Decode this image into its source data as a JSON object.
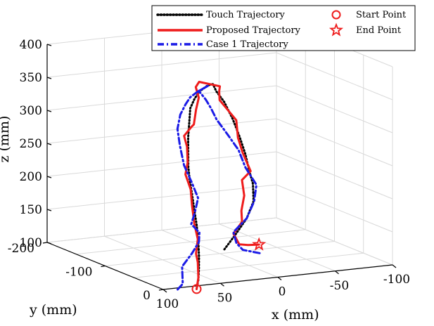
{
  "chart_data": {
    "type": "line3d",
    "title": "",
    "xlabel": "x (mm)",
    "ylabel": "y (mm)",
    "zlabel": "z (mm)",
    "xlim": [
      -100,
      100
    ],
    "ylim": [
      -200,
      0
    ],
    "zlim": [
      100,
      400
    ],
    "x_ticks": [
      "100",
      "50",
      "0",
      "-50",
      "-100"
    ],
    "y_ticks": [
      "-200",
      "-100",
      "0"
    ],
    "z_ticks": [
      "100",
      "150",
      "200",
      "250",
      "300",
      "350",
      "400"
    ],
    "grid": true,
    "legend_position": "top-right",
    "legend": [
      "Touch Trajectory",
      "Proposed Trajectory",
      "Case 1 Trajectory",
      "Start Point",
      "End Point"
    ],
    "series": [
      {
        "name": "Touch Trajectory",
        "color": "#000000",
        "style": "dotted",
        "points": [
          [
            -6,
            -104,
            104
          ],
          [
            -16,
            -106,
            122
          ],
          [
            -28,
            -109,
            145
          ],
          [
            -36,
            -113,
            168
          ],
          [
            -38,
            -118,
            192
          ],
          [
            -36,
            -121,
            213
          ],
          [
            -34,
            -123,
            236
          ],
          [
            -30,
            -125,
            262
          ],
          [
            -24,
            -125,
            290
          ],
          [
            -14,
            -120,
            320
          ],
          [
            -4,
            -114,
            340
          ],
          [
            4,
            -104,
            356
          ],
          [
            14,
            -93,
            360
          ],
          [
            26,
            -82,
            358
          ],
          [
            36,
            -72,
            352
          ],
          [
            45,
            -62,
            342
          ],
          [
            53,
            -48,
            326
          ],
          [
            60,
            -36,
            310
          ],
          [
            66,
            -24,
            294
          ],
          [
            72,
            -12,
            277
          ],
          [
            76,
            -2,
            262
          ],
          [
            80,
            10,
            245
          ],
          [
            83,
            20,
            225
          ],
          [
            85,
            28,
            205
          ],
          [
            86,
            33,
            180
          ],
          [
            86,
            34,
            160
          ],
          [
            85,
            32,
            140
          ],
          [
            84,
            29,
            122
          ],
          [
            83,
            24,
            106
          ]
        ]
      },
      {
        "name": "Proposed Trajectory",
        "color": "#ee1c1c",
        "style": "solid",
        "points": [
          [
            -20,
            -72,
            120
          ],
          [
            -15,
            -81,
            117
          ],
          [
            -18,
            -102,
            110
          ],
          [
            -22,
            -120,
            119
          ],
          [
            -30,
            -121,
            135
          ],
          [
            -34,
            -130,
            148
          ],
          [
            -37,
            -131,
            170
          ],
          [
            -36,
            -133,
            193
          ],
          [
            -38,
            -122,
            210
          ],
          [
            -33,
            -126,
            238
          ],
          [
            -29,
            -126,
            261
          ],
          [
            -26,
            -123,
            289
          ],
          [
            -14,
            -128,
            320
          ],
          [
            -4,
            -109,
            342
          ],
          [
            4,
            -92,
            357
          ],
          [
            13,
            -110,
            359
          ],
          [
            22,
            -98,
            357
          ],
          [
            30,
            -77,
            350
          ],
          [
            40,
            -62,
            339
          ],
          [
            52,
            -42,
            326
          ],
          [
            53,
            -44,
            322
          ],
          [
            58,
            -47,
            308
          ],
          [
            61,
            -36,
            296
          ],
          [
            66,
            -25,
            277
          ],
          [
            73,
            -15,
            264
          ],
          [
            76,
            0,
            247
          ],
          [
            80,
            10,
            228
          ],
          [
            83,
            20,
            204
          ],
          [
            86,
            32,
            185
          ],
          [
            86,
            29,
            162
          ],
          [
            86,
            32,
            150
          ],
          [
            84,
            29,
            125
          ],
          [
            83,
            24,
            106
          ]
        ]
      },
      {
        "name": "Case 1 Trajectory",
        "color": "#1b1be6",
        "style": "dash-dot",
        "points": [
          [
            -16,
            -63,
            111
          ],
          [
            -11,
            -82,
            110
          ],
          [
            -17,
            -105,
            111
          ],
          [
            -18,
            -112,
            125
          ],
          [
            -28,
            -109,
            145
          ],
          [
            -34,
            -108,
            170
          ],
          [
            -39,
            -114,
            192
          ],
          [
            -34,
            -123,
            216
          ],
          [
            -32,
            -131,
            240
          ],
          [
            -25,
            -135,
            262
          ],
          [
            -18,
            -141,
            285
          ],
          [
            -11,
            -137,
            305
          ],
          [
            -4,
            -132,
            321
          ],
          [
            6,
            -123,
            338
          ],
          [
            12,
            -115,
            342
          ],
          [
            14,
            -93,
            359
          ],
          [
            22,
            -95,
            351
          ],
          [
            30,
            -92,
            345
          ],
          [
            34,
            -92,
            335
          ],
          [
            38,
            -93,
            320
          ],
          [
            43,
            -88,
            301
          ],
          [
            48,
            -74,
            282
          ],
          [
            54,
            -55,
            260
          ],
          [
            58,
            -33,
            241
          ],
          [
            62,
            -15,
            226
          ],
          [
            68,
            -9,
            206
          ],
          [
            75,
            -1,
            194
          ],
          [
            78,
            19,
            189
          ],
          [
            81,
            24,
            177
          ],
          [
            84,
            18,
            158
          ],
          [
            85,
            3,
            133
          ],
          [
            86,
            6,
            108
          ],
          [
            88,
            -2,
            94
          ]
        ]
      }
    ],
    "start_point": {
      "label": "Start Point",
      "color": "#ee1c1c",
      "point": [
        83,
        24,
        106
      ]
    },
    "end_point": {
      "label": "End Point",
      "color": "#ee1c1c",
      "point": [
        -20,
        -72,
        120
      ]
    }
  }
}
